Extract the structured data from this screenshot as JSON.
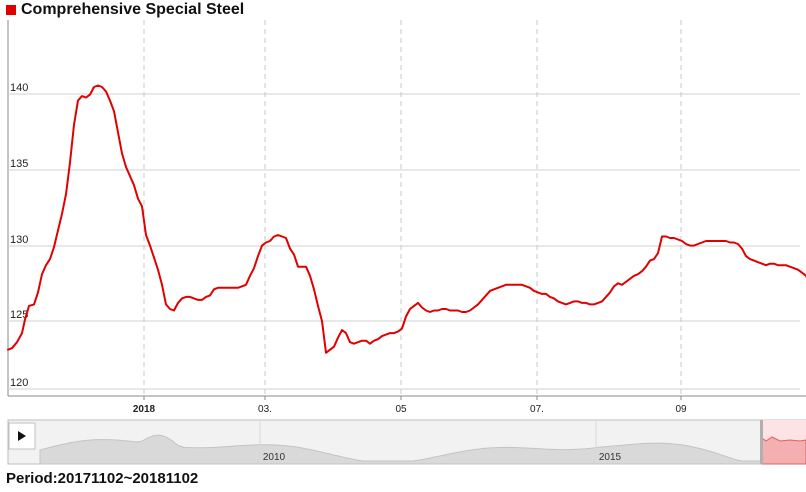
{
  "header": {
    "title": "Comprehensive Special Steel",
    "accent_color": "#e10000"
  },
  "footer": {
    "period": "Period:20171102~20181102"
  },
  "navigator": {
    "play_icon": "play-icon",
    "labels": [
      "2010",
      "2015"
    ],
    "fill_color": "#d9d9d9",
    "selected_color": "#f4b0b0"
  },
  "chart_data": {
    "type": "line",
    "title": "Comprehensive Special Steel",
    "x_tick_labels": [
      "2018",
      "03.",
      "05",
      "07.",
      "09"
    ],
    "y_tick_labels": [
      "120",
      "125",
      "130",
      "135",
      "140"
    ],
    "ylim": [
      119.5,
      146
    ],
    "grid": true,
    "series": [
      {
        "color": "#e10000",
        "points": [
          [
            0,
            122.6
          ],
          [
            4,
            122.7
          ],
          [
            9,
            123.1
          ],
          [
            14,
            123.7
          ],
          [
            17,
            124.6
          ],
          [
            21,
            125.5
          ],
          [
            26,
            125.6
          ],
          [
            30,
            126.4
          ],
          [
            34,
            127.6
          ],
          [
            38,
            128.2
          ],
          [
            42,
            128.6
          ],
          [
            46,
            129.4
          ],
          [
            50,
            130.5
          ],
          [
            54,
            131.6
          ],
          [
            58,
            132.9
          ],
          [
            62,
            135.0
          ],
          [
            66,
            137.5
          ],
          [
            70,
            139.1
          ],
          [
            74,
            139.4
          ],
          [
            78,
            139.3
          ],
          [
            82,
            139.5
          ],
          [
            86,
            140.0
          ],
          [
            90,
            140.1
          ],
          [
            94,
            140.0
          ],
          [
            98,
            139.7
          ],
          [
            102,
            139.1
          ],
          [
            106,
            138.4
          ],
          [
            110,
            137.0
          ],
          [
            114,
            135.6
          ],
          [
            118,
            134.7
          ],
          [
            122,
            134.1
          ],
          [
            126,
            133.5
          ],
          [
            130,
            132.6
          ],
          [
            134,
            132.1
          ],
          [
            138,
            130.2
          ],
          [
            142,
            129.5
          ],
          [
            146,
            128.7
          ],
          [
            150,
            127.9
          ],
          [
            154,
            126.9
          ],
          [
            158,
            125.6
          ],
          [
            162,
            125.3
          ],
          [
            166,
            125.2
          ],
          [
            170,
            125.7
          ],
          [
            174,
            126.0
          ],
          [
            178,
            126.1
          ],
          [
            182,
            126.1
          ],
          [
            186,
            126.0
          ],
          [
            190,
            125.9
          ],
          [
            194,
            125.9
          ],
          [
            198,
            126.1
          ],
          [
            202,
            126.2
          ],
          [
            206,
            126.6
          ],
          [
            210,
            126.7
          ],
          [
            214,
            126.7
          ],
          [
            218,
            126.7
          ],
          [
            222,
            126.7
          ],
          [
            226,
            126.7
          ],
          [
            230,
            126.7
          ],
          [
            234,
            126.8
          ],
          [
            238,
            126.9
          ],
          [
            242,
            127.5
          ],
          [
            246,
            128.0
          ],
          [
            250,
            128.8
          ],
          [
            254,
            129.5
          ],
          [
            258,
            129.7
          ],
          [
            262,
            129.8
          ],
          [
            266,
            130.1
          ],
          [
            270,
            130.2
          ],
          [
            274,
            130.1
          ],
          [
            278,
            130.0
          ],
          [
            282,
            129.3
          ],
          [
            286,
            128.9
          ],
          [
            290,
            128.1
          ],
          [
            294,
            128.1
          ],
          [
            298,
            128.1
          ],
          [
            302,
            127.5
          ],
          [
            306,
            126.6
          ],
          [
            310,
            125.5
          ],
          [
            314,
            124.5
          ],
          [
            318,
            122.4
          ],
          [
            322,
            122.6
          ],
          [
            326,
            122.8
          ],
          [
            330,
            123.4
          ],
          [
            334,
            123.9
          ],
          [
            338,
            123.7
          ],
          [
            342,
            123.1
          ],
          [
            346,
            123.0
          ],
          [
            350,
            123.1
          ],
          [
            354,
            123.2
          ],
          [
            358,
            123.2
          ],
          [
            362,
            123.0
          ],
          [
            366,
            123.2
          ],
          [
            370,
            123.3
          ],
          [
            374,
            123.5
          ],
          [
            378,
            123.6
          ],
          [
            382,
            123.7
          ],
          [
            386,
            123.7
          ],
          [
            390,
            123.8
          ],
          [
            394,
            124.0
          ],
          [
            398,
            124.8
          ],
          [
            402,
            125.3
          ],
          [
            406,
            125.5
          ],
          [
            410,
            125.7
          ],
          [
            414,
            125.4
          ],
          [
            418,
            125.2
          ],
          [
            422,
            125.1
          ],
          [
            426,
            125.2
          ],
          [
            430,
            125.2
          ],
          [
            434,
            125.3
          ],
          [
            438,
            125.3
          ],
          [
            442,
            125.2
          ],
          [
            446,
            125.2
          ],
          [
            450,
            125.2
          ],
          [
            454,
            125.1
          ],
          [
            458,
            125.1
          ],
          [
            462,
            125.2
          ],
          [
            466,
            125.4
          ],
          [
            470,
            125.6
          ],
          [
            474,
            125.9
          ],
          [
            478,
            126.2
          ],
          [
            482,
            126.5
          ],
          [
            486,
            126.6
          ],
          [
            490,
            126.7
          ],
          [
            494,
            126.8
          ],
          [
            498,
            126.9
          ],
          [
            502,
            126.9
          ],
          [
            506,
            126.9
          ],
          [
            510,
            126.9
          ],
          [
            514,
            126.9
          ],
          [
            518,
            126.8
          ],
          [
            522,
            126.7
          ],
          [
            526,
            126.5
          ],
          [
            530,
            126.4
          ],
          [
            534,
            126.3
          ],
          [
            538,
            126.3
          ],
          [
            542,
            126.1
          ],
          [
            546,
            126.0
          ],
          [
            550,
            125.8
          ],
          [
            554,
            125.7
          ],
          [
            558,
            125.6
          ],
          [
            562,
            125.7
          ],
          [
            566,
            125.8
          ],
          [
            570,
            125.8
          ],
          [
            574,
            125.7
          ],
          [
            578,
            125.7
          ],
          [
            582,
            125.6
          ],
          [
            586,
            125.6
          ],
          [
            590,
            125.7
          ],
          [
            594,
            125.8
          ],
          [
            598,
            126.1
          ],
          [
            602,
            126.4
          ],
          [
            606,
            126.8
          ],
          [
            610,
            127.0
          ],
          [
            614,
            126.9
          ],
          [
            618,
            127.1
          ],
          [
            622,
            127.3
          ],
          [
            626,
            127.5
          ],
          [
            630,
            127.6
          ],
          [
            634,
            127.8
          ],
          [
            638,
            128.1
          ],
          [
            642,
            128.5
          ],
          [
            646,
            128.6
          ],
          [
            650,
            129.0
          ],
          [
            654,
            130.1
          ],
          [
            658,
            130.1
          ],
          [
            662,
            130.0
          ],
          [
            666,
            130.0
          ],
          [
            670,
            129.9
          ],
          [
            674,
            129.8
          ],
          [
            678,
            129.6
          ],
          [
            682,
            129.5
          ],
          [
            686,
            129.5
          ],
          [
            690,
            129.6
          ],
          [
            694,
            129.7
          ],
          [
            698,
            129.8
          ],
          [
            702,
            129.8
          ],
          [
            706,
            129.8
          ],
          [
            710,
            129.8
          ],
          [
            714,
            129.8
          ],
          [
            718,
            129.8
          ],
          [
            722,
            129.7
          ],
          [
            726,
            129.7
          ],
          [
            730,
            129.6
          ],
          [
            734,
            129.3
          ],
          [
            738,
            128.8
          ],
          [
            742,
            128.6
          ],
          [
            746,
            128.5
          ],
          [
            750,
            128.4
          ],
          [
            754,
            128.3
          ],
          [
            758,
            128.2
          ],
          [
            762,
            128.3
          ],
          [
            766,
            128.3
          ],
          [
            770,
            128.2
          ],
          [
            774,
            128.2
          ],
          [
            778,
            128.2
          ],
          [
            782,
            128.1
          ],
          [
            786,
            128.0
          ],
          [
            790,
            127.9
          ],
          [
            794,
            127.7
          ],
          [
            798,
            127.5
          ],
          [
            800,
            127.2
          ]
        ]
      }
    ]
  }
}
